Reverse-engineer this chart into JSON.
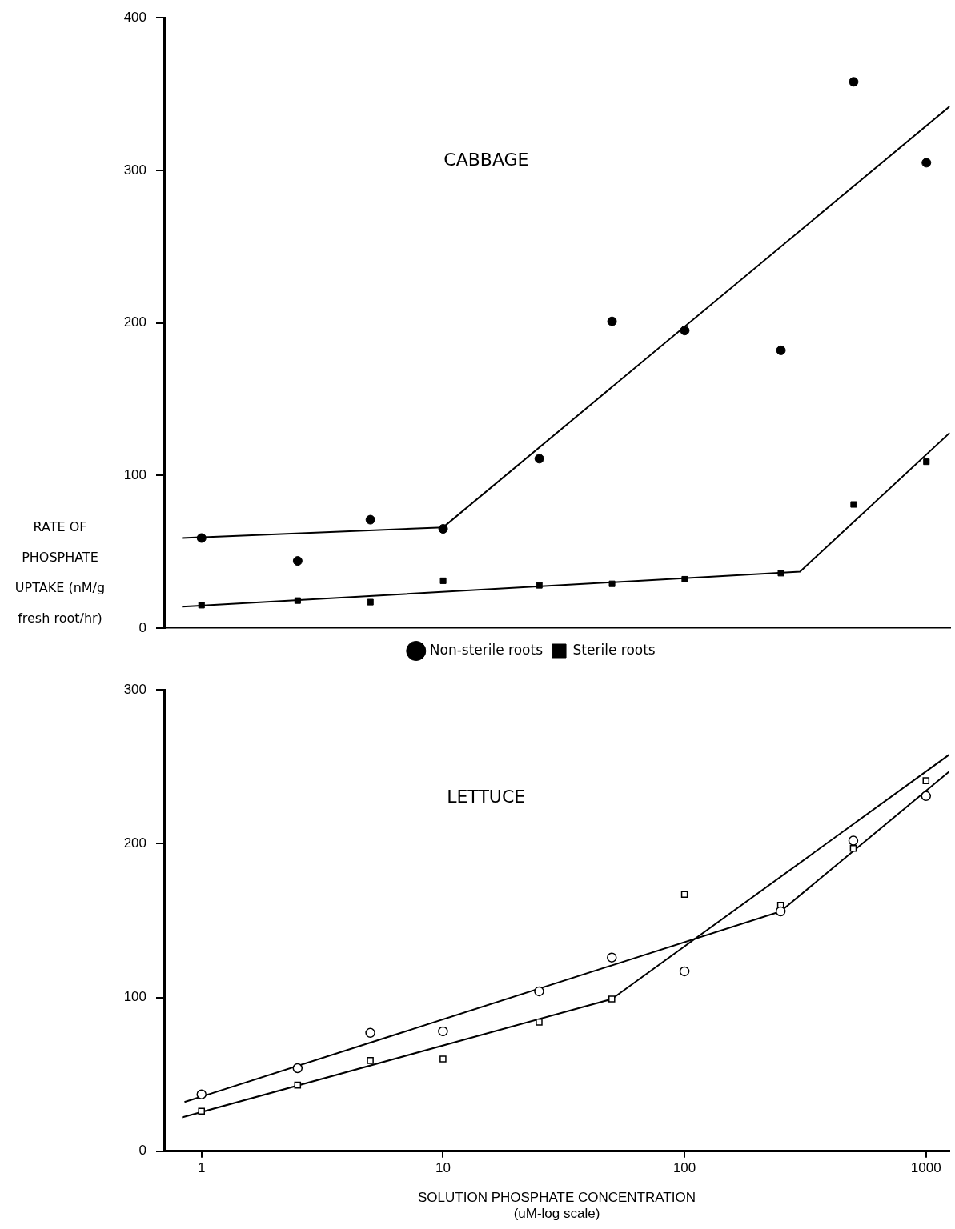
{
  "chart_data": [
    {
      "type": "scatter",
      "title": "CABBAGE",
      "ylabel": "RATE OF PHOSPHATE UPTAKE (nM/g fresh root/hr)",
      "log": "x",
      "xlim": [
        0.73,
        1250
      ],
      "ylim": [
        0,
        400
      ],
      "yticks": [
        0,
        100,
        200,
        300,
        400
      ],
      "tick_labels": "y",
      "grid": false,
      "legend": "bottom",
      "series": [
        {
          "name": "Non-sterile roots",
          "color": "#000000",
          "marker": "circle",
          "x": [
            1,
            2.5,
            5,
            10,
            25,
            50,
            100,
            250,
            500,
            1000
          ],
          "values": [
            59,
            44,
            71,
            65,
            111,
            201,
            195,
            182,
            358,
            305
          ]
        },
        {
          "name": "Sterile roots",
          "color": "#000000",
          "marker": "square",
          "x": [
            1,
            2.5,
            5,
            10,
            25,
            50,
            100,
            250,
            500,
            1000
          ],
          "values": [
            15,
            18,
            17,
            31,
            28,
            29,
            32,
            36,
            81,
            109
          ]
        },
        {
          "type": "line",
          "color": "#000000",
          "marker": "none",
          "x": [
            0.83,
            10,
            1250
          ],
          "values": [
            59,
            66,
            342
          ]
        },
        {
          "type": "line",
          "color": "#000000",
          "marker": "none",
          "x": [
            0.83,
            300,
            1250
          ],
          "values": [
            14,
            37,
            128
          ]
        }
      ]
    },
    {
      "type": "scatter",
      "title": "LETTUCE",
      "xlabel": "SOLUTION PHOSPHATE CONCENTRATION (uM-log scale)",
      "log": "x",
      "xlim": [
        0.73,
        1250
      ],
      "xticks": [
        1,
        10,
        100,
        1000
      ],
      "ylim": [
        0,
        300
      ],
      "yticks": [
        0,
        100,
        200,
        300
      ],
      "grid": false,
      "series": [
        {
          "color": "#000000",
          "marker": "circle",
          "x": [
            1,
            2.5,
            5,
            10,
            25,
            50,
            100,
            250,
            500,
            1000
          ],
          "values": [
            37,
            54,
            77,
            78,
            104,
            126,
            117,
            156,
            202,
            231
          ]
        },
        {
          "color": "#000000",
          "marker": "square",
          "x": [
            1,
            2.5,
            5,
            10,
            25,
            50,
            100,
            250,
            500,
            1000
          ],
          "values": [
            26,
            43,
            59,
            60,
            84,
            99,
            167,
            160,
            197,
            241
          ]
        },
        {
          "type": "line",
          "color": "#000000",
          "marker": "none",
          "x": [
            0.85,
            250,
            1250
          ],
          "values": [
            32,
            156,
            247
          ]
        },
        {
          "type": "line",
          "color": "#000000",
          "marker": "none",
          "x": [
            0.83,
            50,
            1250
          ],
          "values": [
            22,
            99,
            258
          ]
        }
      ]
    }
  ]
}
